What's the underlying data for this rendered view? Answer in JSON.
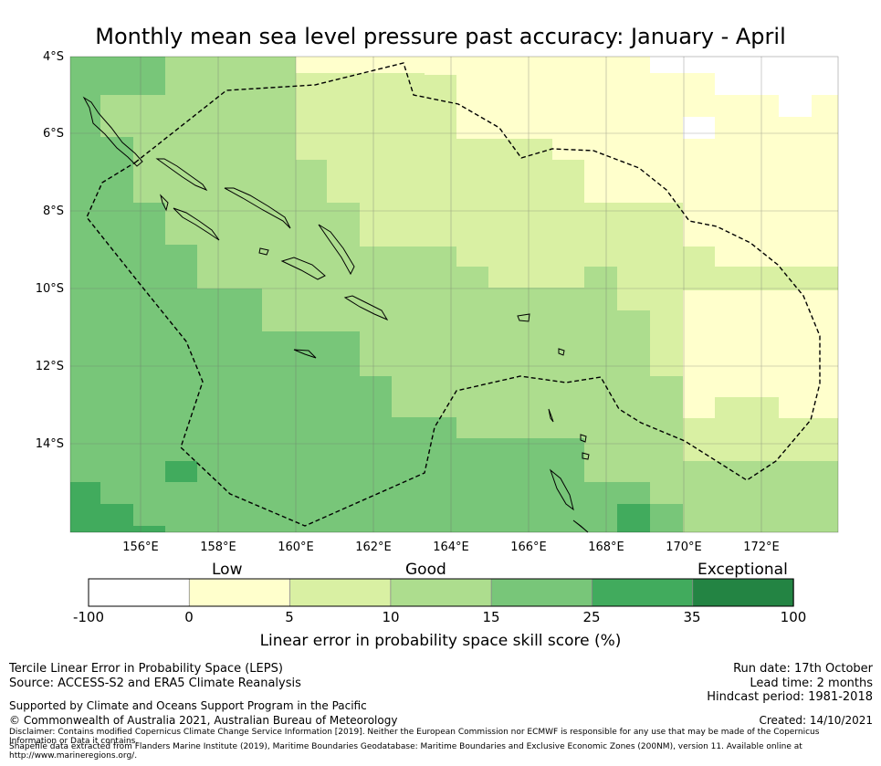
{
  "title": "Monthly mean sea level pressure past accuracy: January - April",
  "map": {
    "lat_labels": [
      "4°S",
      "6°S",
      "8°S",
      "10°S",
      "12°S",
      "14°S"
    ],
    "lon_labels": [
      "156°E",
      "158°E",
      "160°E",
      "162°E",
      "164°E",
      "166°E",
      "168°E",
      "170°E",
      "172°E"
    ]
  },
  "colorbar": {
    "category_labels": [
      "Low",
      "Good",
      "Exceptional"
    ],
    "ticks": [
      "-100",
      "0",
      "5",
      "10",
      "15",
      "25",
      "35",
      "100"
    ],
    "bins": [
      {
        "from": -100,
        "to": 0,
        "color": "#ffffff"
      },
      {
        "from": 0,
        "to": 5,
        "color": "#ffffcc"
      },
      {
        "from": 5,
        "to": 10,
        "color": "#d9f0a3"
      },
      {
        "from": 10,
        "to": 15,
        "color": "#addd8e"
      },
      {
        "from": 15,
        "to": 25,
        "color": "#78c679"
      },
      {
        "from": 25,
        "to": 35,
        "color": "#41ab5d"
      },
      {
        "from": 35,
        "to": 100,
        "color": "#238443"
      }
    ],
    "title": "Linear error in probability space skill score (%)"
  },
  "footer": {
    "left_line1": "Tercile Linear Error in Probability Space (LEPS)",
    "left_line2": "Source: ACCESS-S2 and ERA5 Climate Reanalysis",
    "support": "Supported by Climate and Oceans Support Program in the Pacific",
    "copyright": "© Commonwealth of Australia 2021, Australian Bureau of Meteorology",
    "disclaimer": "Disclaimer: Contains modified Copernicus Climate Change Service Information [2019]. Neither the European Commission nor ECMWF is responsible for any use that may be made of the Copernicus Information or Data it contains.",
    "shapefile": "Shapefile data extracted from Flanders Marine Institute (2019), Maritime Boundaries Geodatabase: Maritime Boundaries and Exclusive Economic Zones (200NM), version 11. Available online at http://www.marineregions.org/.",
    "run_date": "Run date: 17th October",
    "lead_time": "Lead time: 2 months",
    "hindcast": "Hindcast period: 1981-2018",
    "created": "Created: 14/10/2021"
  }
}
